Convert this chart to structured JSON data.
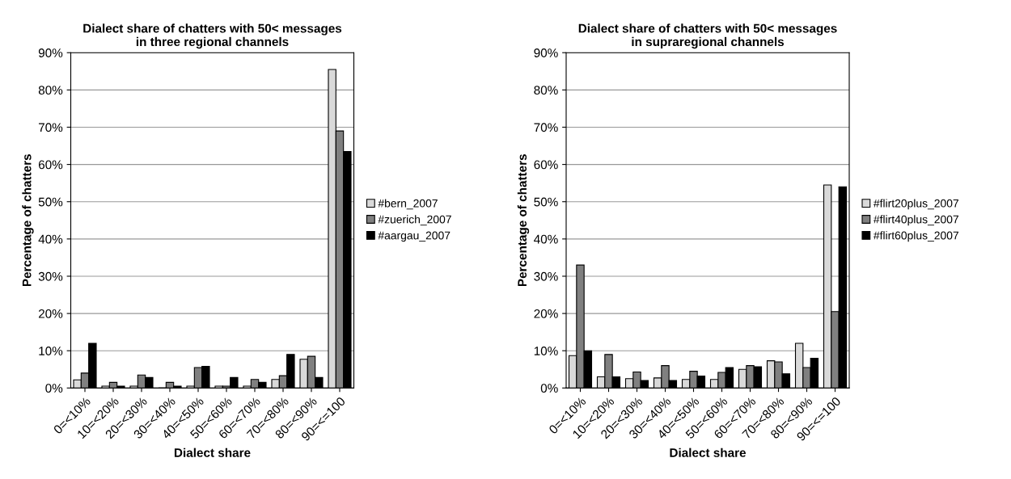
{
  "chart_data": [
    {
      "type": "bar",
      "title": "Dialect share of chatters with 50< messages\nin three regional channels",
      "xlabel": "Dialect share",
      "ylabel": "Percentage of chatters",
      "categories": [
        "0=<10%",
        "10=<20%",
        "20=<30%",
        "30=<40%",
        "40=<50%",
        "50=<60%",
        "60=<70%",
        "70=<80%",
        "80=<90%",
        "90=<=100"
      ],
      "series": [
        {
          "name": "#bern_2007",
          "color": "#d9d9d9",
          "values": [
            2.2,
            0.5,
            0.5,
            0,
            0.5,
            0.5,
            0.5,
            2.3,
            7.7,
            85.5
          ]
        },
        {
          "name": "#zuerich_2007",
          "color": "#808080",
          "values": [
            4,
            1.5,
            3.5,
            1.5,
            5.5,
            0.5,
            2.3,
            3.3,
            8.5,
            69
          ]
        },
        {
          "name": "#aargau_2007",
          "color": "#000000",
          "values": [
            12,
            0.5,
            2.8,
            0.5,
            5.8,
            2.8,
            1.5,
            9,
            2.8,
            63.5
          ]
        }
      ],
      "ylim": [
        0,
        90
      ],
      "yticks": [
        {
          "value": 0,
          "label": "0%"
        },
        {
          "value": 10,
          "label": "10%"
        },
        {
          "value": 20,
          "label": "20%"
        },
        {
          "value": 30,
          "label": "30%"
        },
        {
          "value": 40,
          "label": "40%"
        },
        {
          "value": 50,
          "label": "50%"
        },
        {
          "value": 60,
          "label": "60%"
        },
        {
          "value": 70,
          "label": "70%"
        },
        {
          "value": 80,
          "label": "80%"
        },
        {
          "value": 90,
          "label": "90%"
        }
      ],
      "grid": "y",
      "legend": "right"
    },
    {
      "type": "bar",
      "title": "Dialect share of chatters with 50< messages\nin supraregional channels",
      "xlabel": "Dialect share",
      "ylabel": "Percentage of chatters",
      "categories": [
        "0=<10%",
        "10=<20%",
        "20=<30%",
        "30=<40%",
        "40=<50%",
        "50=<60%",
        "60=<70%",
        "70=<80%",
        "80=<90%",
        "90=<=100"
      ],
      "series": [
        {
          "name": "#flirt20plus_2007",
          "color": "#d9d9d9",
          "values": [
            8.7,
            3,
            2.5,
            2.7,
            2.3,
            2.3,
            5,
            7.3,
            12,
            54.5
          ]
        },
        {
          "name": "#flirt40plus_2007",
          "color": "#808080",
          "values": [
            33,
            9,
            4.3,
            6,
            4.5,
            4.2,
            6,
            7,
            5.5,
            20.5
          ]
        },
        {
          "name": "#flirt60plus_2007",
          "color": "#000000",
          "values": [
            10,
            3,
            2,
            2,
            3.2,
            5.5,
            5.7,
            3.8,
            8,
            54
          ]
        }
      ],
      "ylim": [
        0,
        90
      ],
      "yticks": [
        {
          "value": 0,
          "label": "0%"
        },
        {
          "value": 10,
          "label": "10%"
        },
        {
          "value": 20,
          "label": "20%"
        },
        {
          "value": 30,
          "label": "30%"
        },
        {
          "value": 40,
          "label": "40%"
        },
        {
          "value": 50,
          "label": "50%"
        },
        {
          "value": 60,
          "label": "60%"
        },
        {
          "value": 70,
          "label": "70%"
        },
        {
          "value": 80,
          "label": "80%"
        },
        {
          "value": 90,
          "label": "90%"
        }
      ],
      "grid": "y",
      "legend": "right"
    }
  ]
}
